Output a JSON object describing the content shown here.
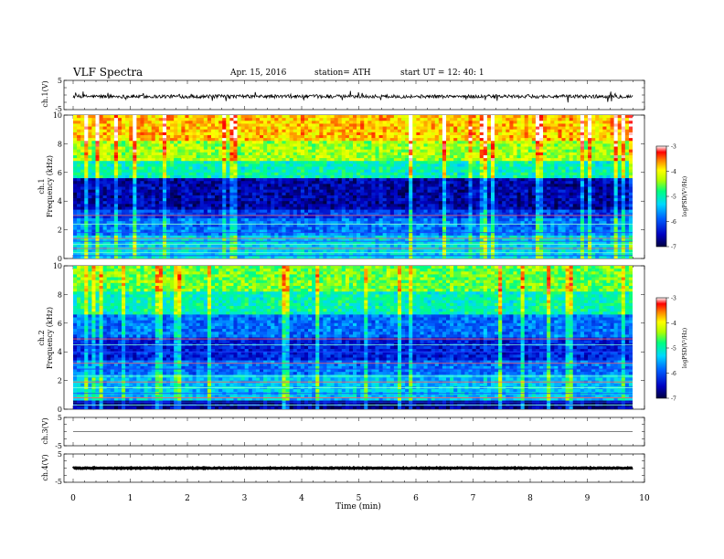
{
  "header": {
    "title": "VLF Spectra",
    "date": "Apr. 15, 2016",
    "station": "station= ATH",
    "start": "start  UT =   12: 40: 1"
  },
  "colors": {
    "axis": "#000000",
    "colormap": [
      "#000040",
      "#0000a0",
      "#0050ff",
      "#00c8ff",
      "#00ff80",
      "#a0ff00",
      "#ffff00",
      "#ff8000",
      "#ff0000",
      "#ffffff"
    ]
  },
  "chart_data": [
    {
      "type": "line",
      "ylabel": "ch.1(V)",
      "yticks": [
        "5",
        "-5"
      ],
      "ylim": [
        -5,
        5
      ],
      "description_values": {
        "mean": -0.5,
        "amplitude": 0.6
      }
    },
    {
      "type": "heatmap",
      "ylabel": "ch.1\nFrequency  (kHz)",
      "ylabel_line1": "ch.1",
      "ylabel_line2": "Frequency  (kHz)",
      "yticks": [
        "10",
        "8",
        "6",
        "4",
        "2",
        "0"
      ],
      "ylim": [
        0,
        10
      ],
      "colorbar": {
        "label": "logPSD(V²/Hz)",
        "ticks": [
          "-3",
          "-4",
          "-5",
          "-6",
          "-7"
        ],
        "range": [
          -7,
          -3
        ]
      }
    },
    {
      "type": "heatmap",
      "ylabel_line1": "ch.2",
      "ylabel_line2": "Frequency  (kHz)",
      "yticks": [
        "10",
        "8",
        "6",
        "4",
        "2",
        "0"
      ],
      "ylim": [
        0,
        10
      ],
      "colorbar": {
        "label": "logPSD(V²/Hz)",
        "ticks": [
          "-3",
          "-4",
          "-5",
          "-6",
          "-7"
        ],
        "range": [
          -7,
          -3
        ]
      }
    },
    {
      "type": "line",
      "ylabel": "ch.3(V)",
      "yticks": [
        "5",
        "-5"
      ],
      "ylim": [
        -5,
        5
      ],
      "description_values": {
        "mean": 0.0,
        "amplitude": 0.0
      }
    },
    {
      "type": "line",
      "ylabel": "ch.4(V)",
      "yticks": [
        "5",
        "-5"
      ],
      "ylim": [
        -5,
        5
      ],
      "description_values": {
        "mean": 0.0,
        "amplitude": 0.15
      }
    }
  ],
  "xaxis": {
    "label": "Time  (min)",
    "ticks": [
      "0",
      "1",
      "2",
      "3",
      "4",
      "5",
      "6",
      "7",
      "8",
      "9",
      "10"
    ],
    "xlim": [
      0,
      10
    ],
    "data_end": 9.83
  },
  "labels": {
    "ch1_ylabel": "ch.1(V)",
    "ch3_ylabel": "ch.3(V)",
    "ch4_ylabel": "ch.4(V)",
    "spec1_ylabel_a": "ch.1",
    "spec1_ylabel_b": "Frequency  (kHz)",
    "spec2_ylabel_a": "ch.2",
    "spec2_ylabel_b": "Frequency  (kHz)",
    "cbar_label": "logPSD(V²/Hz)",
    "x_label": "Time  (min)",
    "wave_top": "5",
    "wave_bot": "-5"
  },
  "cbar_ticks": [
    "-3",
    "-4",
    "-5",
    "-6",
    "-7"
  ],
  "freq_ticks": [
    "10",
    "8",
    "6",
    "4",
    "2",
    "0"
  ],
  "time_ticks": [
    "0",
    "1",
    "2",
    "3",
    "4",
    "5",
    "6",
    "7",
    "8",
    "9",
    "10"
  ]
}
